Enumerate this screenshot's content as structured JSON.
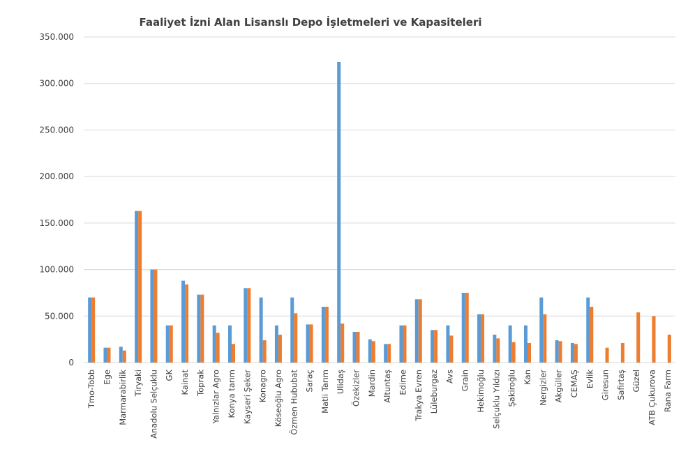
{
  "chart_data": {
    "type": "bar",
    "title": "Faaliyet İzni Alan Lisanslı Depo İşletmeleri ve Kapasiteleri",
    "xlabel": "",
    "ylabel": "",
    "ylim": [
      0,
      350000
    ],
    "yticks": [
      "0",
      "50.000",
      "100.000",
      "150.000",
      "200.000",
      "250.000",
      "300.000",
      "350.000"
    ],
    "ytick_values": [
      0,
      50000,
      100000,
      150000,
      200000,
      250000,
      300000,
      350000
    ],
    "grid": true,
    "legend": "none",
    "categories": [
      "Tmo-Tobb",
      "Ege",
      "Marmarabirlik",
      "Tiryaki",
      "Anadolu Selçuklu",
      "GK",
      "Kainat",
      "Toprak",
      "Yalnızlar Agro",
      "Konya tarım",
      "Kayseri Şeker",
      "Konagro",
      "Köseoğlu Agro",
      "Özmen Hububat",
      "Saraç",
      "Matli Tarım",
      "Ulidaş",
      "Özekizler",
      "Mardin",
      "Altuntaş",
      "Edirne",
      "Trakya Evren",
      "Lüleburgaz",
      "Avs",
      "Grain",
      "Hekimoğlu",
      "Selçuklu Yıldızı",
      "Şakiroğlu",
      "Kan",
      "Nergizler",
      "Akgüller",
      "CEMAŞ",
      "Evlik",
      "Giresun",
      "Safirtaş",
      "Güzel",
      "ATB Çukurova",
      "Rana Farm"
    ],
    "series": [
      {
        "color": "#5b9bd5",
        "values": [
          70000,
          16000,
          17000,
          163000,
          100000,
          40000,
          88000,
          73000,
          40000,
          40000,
          80000,
          70000,
          40000,
          70000,
          41000,
          60000,
          323000,
          33000,
          25000,
          20000,
          40000,
          68000,
          35000,
          40000,
          75000,
          52000,
          30000,
          40000,
          40000,
          70000,
          24000,
          21000,
          70000,
          0,
          0,
          0,
          0,
          0
        ]
      },
      {
        "color": "#ed7d31",
        "values": [
          70000,
          16000,
          13000,
          163000,
          100000,
          40000,
          84000,
          73000,
          32000,
          20000,
          80000,
          24000,
          30000,
          53000,
          41000,
          60000,
          42000,
          33000,
          23000,
          20000,
          40000,
          68000,
          35000,
          29000,
          75000,
          52000,
          26000,
          22000,
          21000,
          52000,
          23000,
          20000,
          60000,
          16000,
          21000,
          54000,
          50000,
          30000
        ]
      }
    ]
  }
}
